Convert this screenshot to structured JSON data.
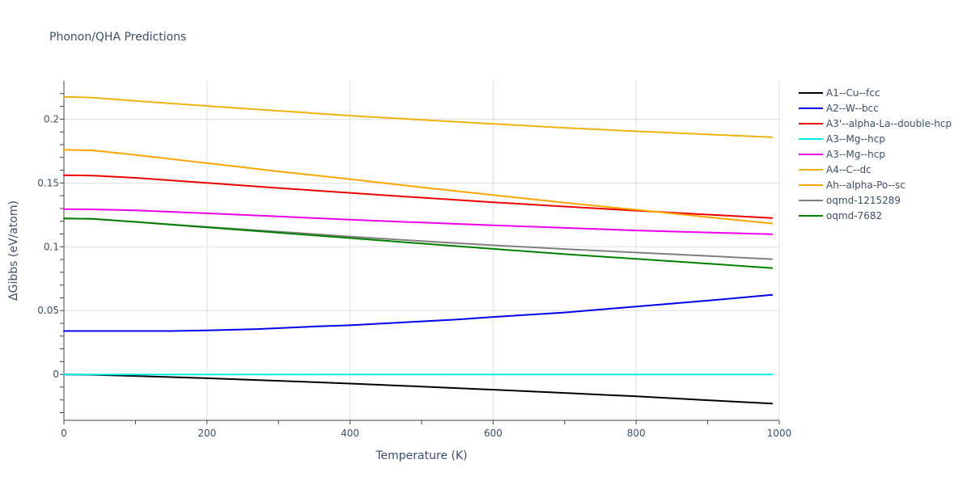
{
  "chart_data": {
    "type": "line",
    "title": "Phonon/QHA Predictions",
    "xlabel": "Temperature (K)",
    "ylabel": "ΔGibbs (eV/atom)",
    "xlim": [
      0,
      1000
    ],
    "ylim": [
      -0.036,
      0.23
    ],
    "xticks": [
      0,
      200,
      400,
      600,
      800,
      1000
    ],
    "yticks": [
      0,
      0.05,
      0.1,
      0.15,
      0.2
    ],
    "ytick_labels": [
      "0",
      "0.05",
      "0.1",
      "0.15",
      "0.2"
    ],
    "grid": true,
    "legend_position": "right",
    "series": [
      {
        "name": "A1--Cu--fcc",
        "color": "#000000",
        "x": [
          0,
          40,
          100,
          200,
          300,
          400,
          500,
          600,
          700,
          800,
          900,
          990
        ],
        "y": [
          0,
          -0.0003,
          -0.0012,
          -0.003,
          -0.005,
          -0.0072,
          -0.0095,
          -0.012,
          -0.0145,
          -0.0172,
          -0.0202,
          -0.0228
        ]
      },
      {
        "name": "A2--W--bcc",
        "color": "#0000ee",
        "x": [
          0,
          50,
          100,
          150,
          200,
          270,
          350,
          400,
          500,
          550,
          600,
          700,
          800,
          900,
          990
        ],
        "y": [
          0.034,
          0.034,
          0.034,
          0.034,
          0.0345,
          0.0355,
          0.0375,
          0.0385,
          0.0415,
          0.043,
          0.045,
          0.0485,
          0.0532,
          0.0578,
          0.0623
        ]
      },
      {
        "name": "A3'--alpha-La--double-hcp",
        "color": "#ee0000",
        "x": [
          0,
          40,
          100,
          200,
          300,
          400,
          500,
          600,
          700,
          800,
          900,
          990
        ],
        "y": [
          0.156,
          0.1558,
          0.154,
          0.15,
          0.146,
          0.1422,
          0.1385,
          0.1349,
          0.1315,
          0.1283,
          0.1252,
          0.1225
        ]
      },
      {
        "name": "A3--Mg--hcp",
        "color": "#00eeee",
        "x": [
          0,
          200,
          400,
          600,
          800,
          990
        ],
        "y": [
          0,
          0,
          0,
          0,
          0,
          0
        ]
      },
      {
        "name": "A3--Mg--hcp",
        "color": "#ee00ee",
        "x": [
          0,
          40,
          100,
          200,
          300,
          400,
          500,
          600,
          700,
          800,
          900,
          990
        ],
        "y": [
          0.1295,
          0.1293,
          0.1285,
          0.1262,
          0.1237,
          0.1212,
          0.119,
          0.1168,
          0.1148,
          0.1128,
          0.1112,
          0.1098
        ]
      },
      {
        "name": "A4--C--dc",
        "color": "#eeb211",
        "x": [
          0,
          40,
          100,
          200,
          300,
          400,
          500,
          600,
          700,
          800,
          900,
          990
        ],
        "y": [
          0.2175,
          0.2168,
          0.2143,
          0.2103,
          0.2065,
          0.2027,
          0.1995,
          0.1963,
          0.1932,
          0.1905,
          0.188,
          0.1858
        ]
      },
      {
        "name": "Ah--alpha-Po--sc",
        "color": "#ffa500",
        "x": [
          0,
          40,
          100,
          200,
          300,
          400,
          500,
          600,
          700,
          800,
          900,
          990
        ],
        "y": [
          0.176,
          0.1755,
          0.172,
          0.1655,
          0.159,
          0.153,
          0.1465,
          0.1405,
          0.1345,
          0.129,
          0.1232,
          0.1182
        ]
      },
      {
        "name": "oqmd-1215289",
        "color": "#808080",
        "x": [
          0,
          40,
          100,
          200,
          300,
          400,
          500,
          600,
          700,
          800,
          900,
          990
        ],
        "y": [
          0.1222,
          0.1218,
          0.1195,
          0.1155,
          0.1118,
          0.108,
          0.1045,
          0.1012,
          0.0982,
          0.0955,
          0.0928,
          0.0903
        ]
      },
      {
        "name": "oqmd-7682",
        "color": "#008000",
        "x": [
          0,
          40,
          100,
          200,
          300,
          400,
          500,
          600,
          700,
          800,
          900,
          990
        ],
        "y": [
          0.1222,
          0.1218,
          0.1195,
          0.1152,
          0.111,
          0.1068,
          0.1025,
          0.0983,
          0.0942,
          0.0905,
          0.0868,
          0.0833
        ]
      }
    ]
  }
}
